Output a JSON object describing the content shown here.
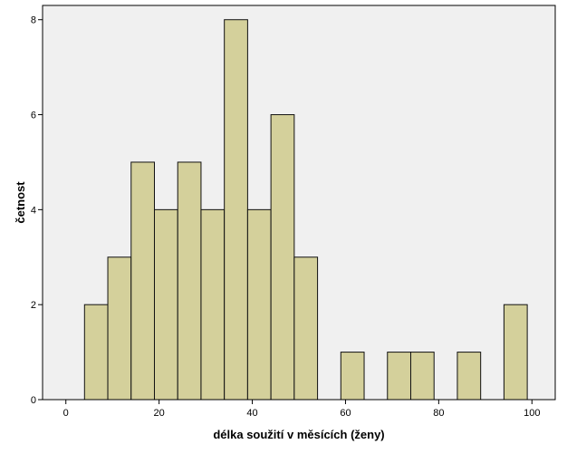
{
  "chart_data": {
    "type": "bar",
    "subtype": "histogram",
    "xlabel": "délka soužití v měsících (ženy)",
    "ylabel": "četnost",
    "xlim": [
      -5,
      105
    ],
    "ylim": [
      0,
      8.3
    ],
    "x_ticks": [
      0,
      20,
      40,
      60,
      80,
      100
    ],
    "y_ticks": [
      0,
      2,
      4,
      6,
      8
    ],
    "bin_width": 5,
    "bins": [
      {
        "start": 4,
        "end": 9,
        "count": 2
      },
      {
        "start": 9,
        "end": 14,
        "count": 3
      },
      {
        "start": 14,
        "end": 19,
        "count": 5
      },
      {
        "start": 19,
        "end": 24,
        "count": 4
      },
      {
        "start": 24,
        "end": 29,
        "count": 5
      },
      {
        "start": 29,
        "end": 34,
        "count": 4
      },
      {
        "start": 34,
        "end": 39,
        "count": 8
      },
      {
        "start": 39,
        "end": 44,
        "count": 4
      },
      {
        "start": 44,
        "end": 49,
        "count": 6
      },
      {
        "start": 49,
        "end": 54,
        "count": 3
      },
      {
        "start": 59,
        "end": 64,
        "count": 1
      },
      {
        "start": 69,
        "end": 74,
        "count": 1
      },
      {
        "start": 74,
        "end": 79,
        "count": 1
      },
      {
        "start": 84,
        "end": 89,
        "count": 1
      },
      {
        "start": 94,
        "end": 99,
        "count": 2
      }
    ],
    "colors": {
      "plot_background": "#f0f0f0",
      "bar_fill": "#d4d09b",
      "bar_stroke": "#111111"
    },
    "grid": false
  }
}
